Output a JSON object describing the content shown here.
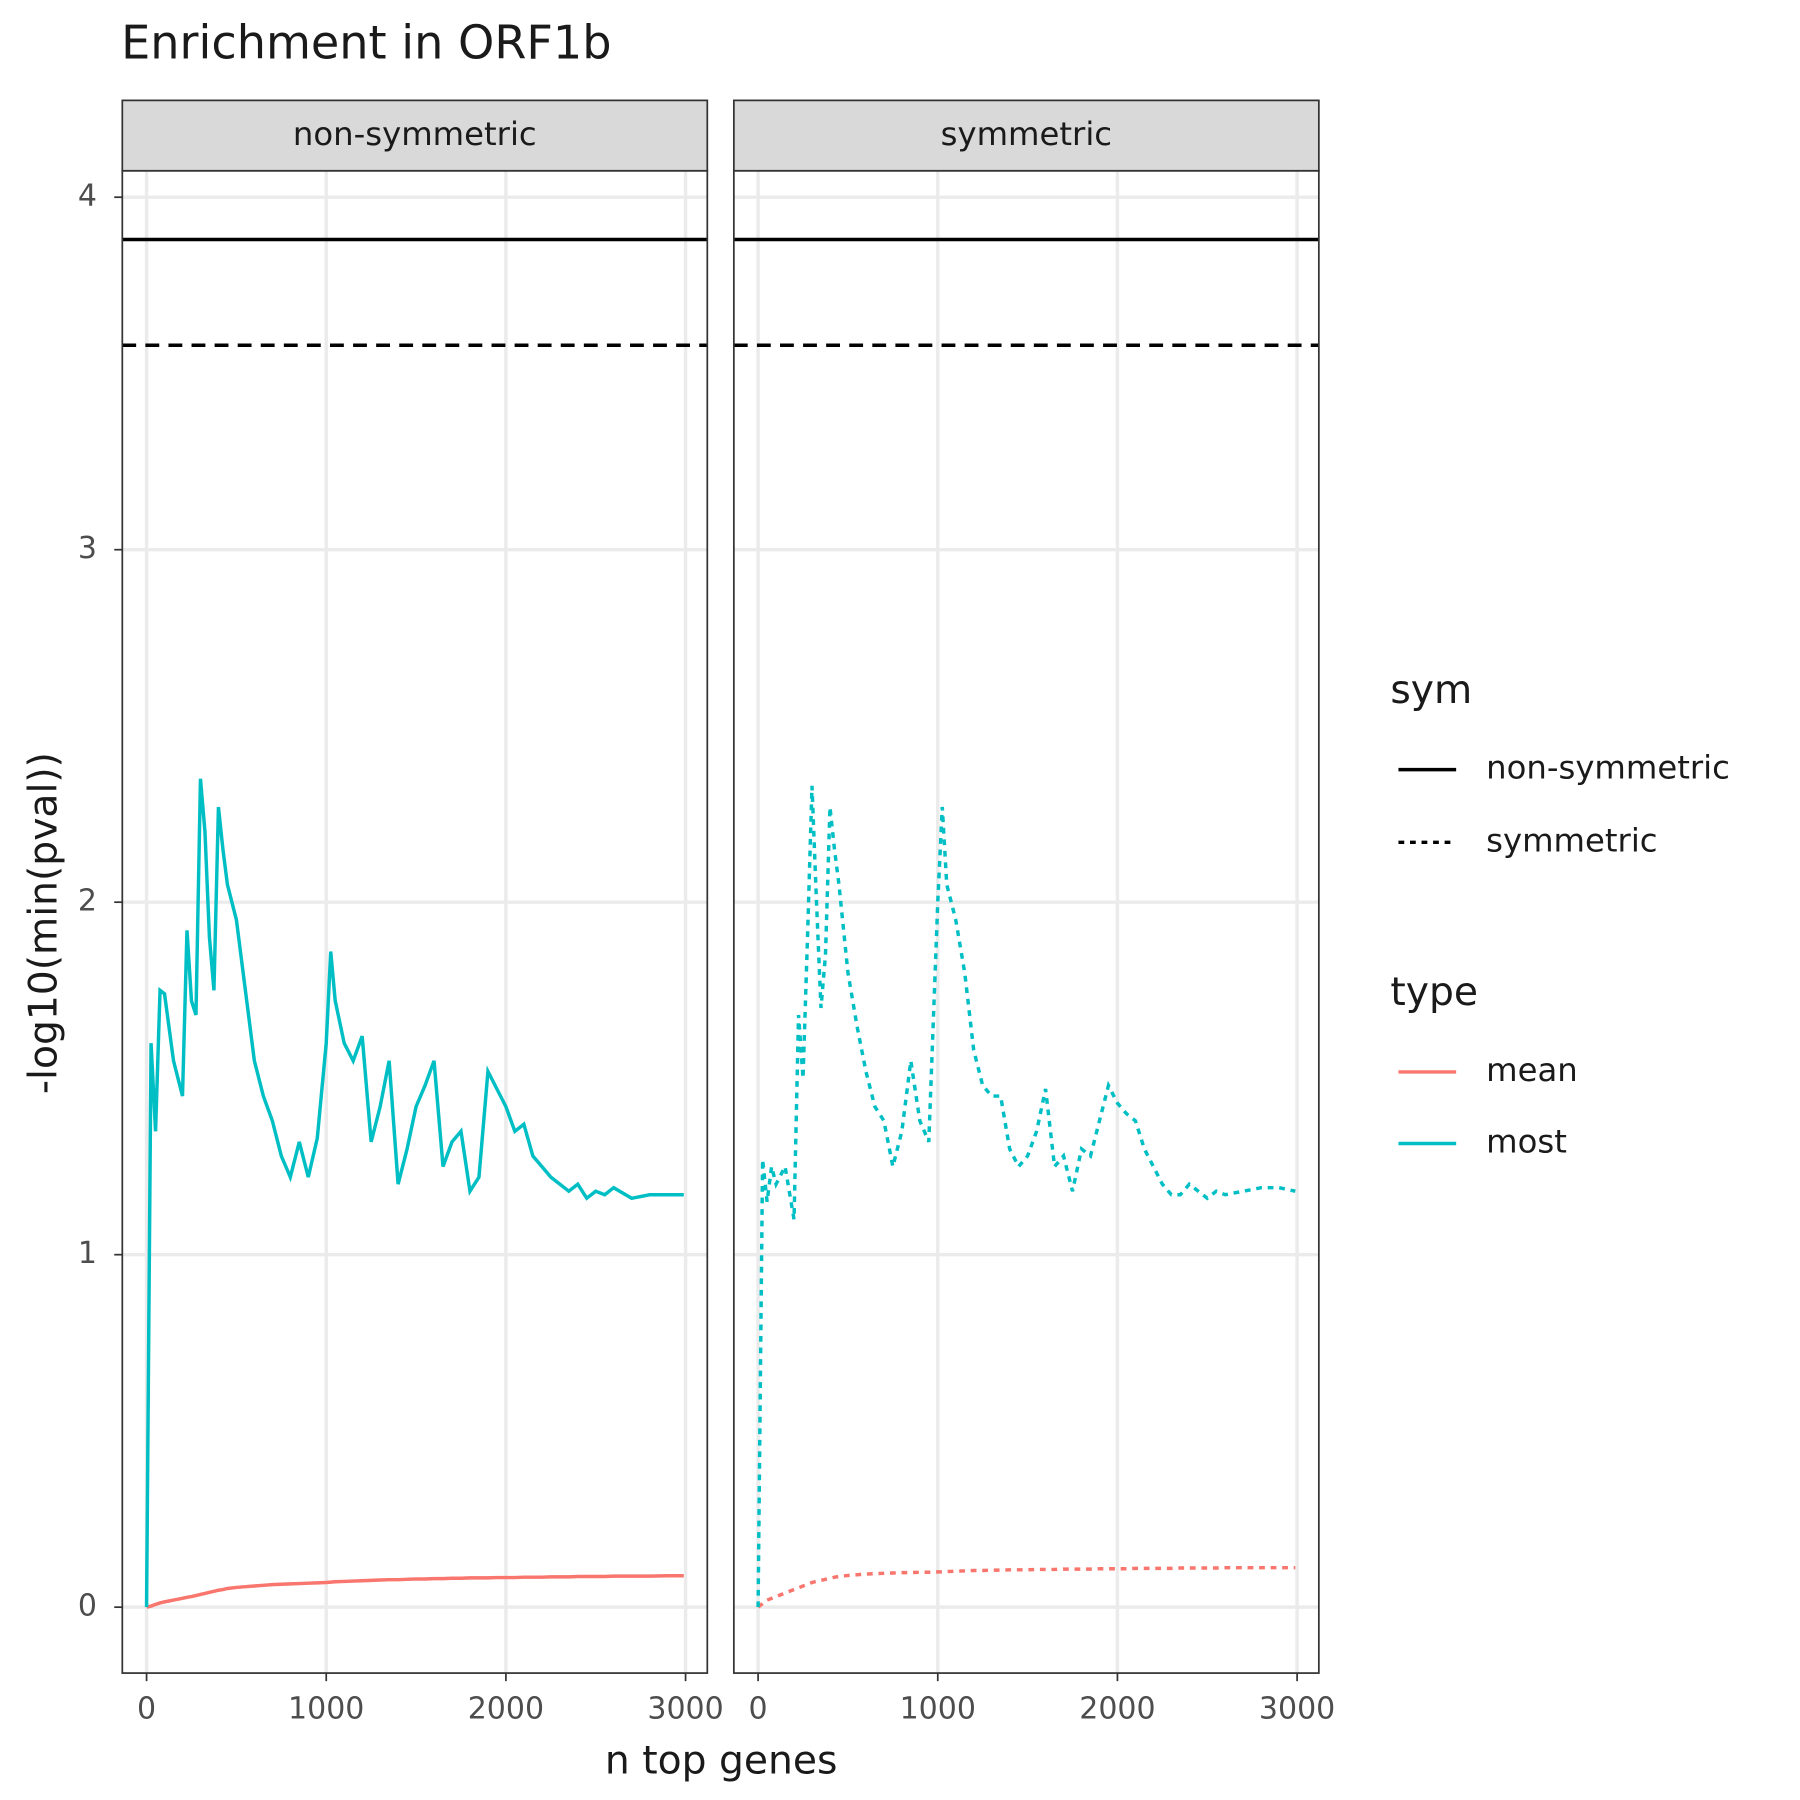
{
  "chart_data": {
    "type": "line",
    "title": "Enrichment in ORF1b",
    "x_label": "n top genes",
    "y_label": "-log10(min(pval))",
    "xlim": [
      -135,
      3121
    ],
    "xticks": [
      0,
      1000,
      2000,
      3000
    ],
    "ylim": [
      -0.187,
      4.075
    ],
    "yticks": [
      0,
      1,
      2,
      3,
      4
    ],
    "grid": true,
    "sym_legend_title": "sym",
    "type_legend_title": "type",
    "reference_lines": [
      {
        "value": 3.88,
        "linetype": "solid"
      },
      {
        "value": 3.58,
        "linetype": "dashed"
      }
    ],
    "x": [
      0,
      25,
      50,
      75,
      100,
      150,
      200,
      225,
      250,
      275,
      300,
      325,
      350,
      375,
      400,
      425,
      450,
      500,
      550,
      600,
      650,
      700,
      750,
      800,
      850,
      900,
      950,
      1000,
      1025,
      1050,
      1100,
      1150,
      1200,
      1250,
      1300,
      1350,
      1400,
      1450,
      1500,
      1550,
      1600,
      1650,
      1700,
      1750,
      1800,
      1850,
      1900,
      1950,
      2000,
      2050,
      2100,
      2150,
      2200,
      2250,
      2300,
      2350,
      2400,
      2450,
      2500,
      2550,
      2600,
      2700,
      2800,
      2900,
      2990
    ],
    "panels": [
      {
        "title": "non-symmetric",
        "linetype": "solid",
        "series": [
          {
            "name": "mean",
            "color": "#F8766D",
            "values": [
              0,
              0.003,
              0.008,
              0.012,
              0.015,
              0.02,
              0.025,
              0.028,
              0.03,
              0.033,
              0.036,
              0.039,
              0.042,
              0.045,
              0.048,
              0.05,
              0.053,
              0.056,
              0.058,
              0.06,
              0.062,
              0.064,
              0.065,
              0.066,
              0.067,
              0.068,
              0.069,
              0.07,
              0.071,
              0.072,
              0.073,
              0.074,
              0.075,
              0.076,
              0.077,
              0.078,
              0.078,
              0.079,
              0.08,
              0.08,
              0.081,
              0.081,
              0.082,
              0.082,
              0.083,
              0.083,
              0.083,
              0.084,
              0.084,
              0.084,
              0.085,
              0.085,
              0.085,
              0.086,
              0.086,
              0.086,
              0.087,
              0.087,
              0.087,
              0.087,
              0.088,
              0.088,
              0.088,
              0.089,
              0.089
            ]
          },
          {
            "name": "most",
            "color": "#00BFC4",
            "values": [
              0,
              1.6,
              1.35,
              1.75,
              1.74,
              1.55,
              1.45,
              1.92,
              1.72,
              1.68,
              2.35,
              2.2,
              1.9,
              1.75,
              2.27,
              2.15,
              2.05,
              1.95,
              1.75,
              1.55,
              1.45,
              1.38,
              1.28,
              1.22,
              1.32,
              1.22,
              1.33,
              1.6,
              1.86,
              1.72,
              1.6,
              1.55,
              1.62,
              1.32,
              1.42,
              1.55,
              1.2,
              1.3,
              1.42,
              1.48,
              1.55,
              1.25,
              1.32,
              1.35,
              1.18,
              1.22,
              1.52,
              1.47,
              1.42,
              1.35,
              1.37,
              1.28,
              1.25,
              1.22,
              1.2,
              1.18,
              1.2,
              1.16,
              1.18,
              1.17,
              1.19,
              1.16,
              1.17,
              1.17,
              1.17
            ]
          }
        ]
      },
      {
        "title": "symmetric",
        "linetype": "dashed",
        "series": [
          {
            "name": "mean",
            "color": "#F8766D",
            "values": [
              0,
              0.01,
              0.02,
              0.025,
              0.03,
              0.04,
              0.05,
              0.055,
              0.06,
              0.065,
              0.07,
              0.073,
              0.076,
              0.079,
              0.082,
              0.085,
              0.087,
              0.09,
              0.092,
              0.094,
              0.095,
              0.096,
              0.097,
              0.098,
              0.098,
              0.099,
              0.099,
              0.1,
              0.1,
              0.101,
              0.102,
              0.103,
              0.104,
              0.104,
              0.105,
              0.105,
              0.106,
              0.106,
              0.106,
              0.107,
              0.107,
              0.107,
              0.108,
              0.108,
              0.108,
              0.108,
              0.109,
              0.109,
              0.109,
              0.109,
              0.11,
              0.11,
              0.11,
              0.11,
              0.11,
              0.111,
              0.111,
              0.111,
              0.111,
              0.111,
              0.112,
              0.112,
              0.112,
              0.112,
              0.112
            ]
          },
          {
            "name": "most",
            "color": "#00BFC4",
            "values": [
              0,
              1.27,
              1.15,
              1.25,
              1.2,
              1.25,
              1.1,
              1.68,
              1.5,
              1.9,
              2.33,
              2.0,
              1.7,
              1.85,
              2.27,
              2.15,
              2.05,
              1.8,
              1.65,
              1.52,
              1.42,
              1.38,
              1.25,
              1.35,
              1.55,
              1.38,
              1.32,
              2.0,
              2.27,
              2.05,
              1.95,
              1.8,
              1.58,
              1.48,
              1.45,
              1.45,
              1.3,
              1.25,
              1.28,
              1.35,
              1.47,
              1.25,
              1.28,
              1.18,
              1.3,
              1.28,
              1.38,
              1.48,
              1.43,
              1.4,
              1.38,
              1.3,
              1.25,
              1.2,
              1.17,
              1.17,
              1.2,
              1.18,
              1.16,
              1.18,
              1.17,
              1.18,
              1.19,
              1.19,
              1.18
            ]
          }
        ]
      }
    ]
  }
}
